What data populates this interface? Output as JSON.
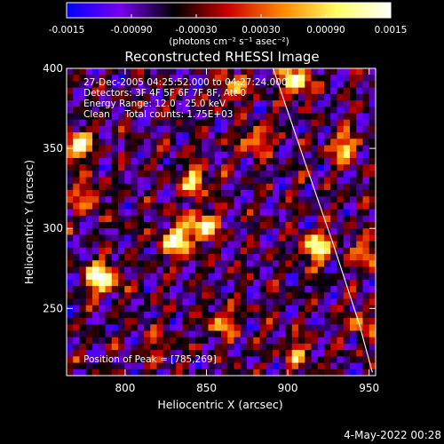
{
  "chart_data": {
    "type": "heatmap",
    "title": "Reconstructed RHESSI Image",
    "xlabel": "Heliocentric X (arcsec)",
    "ylabel": "Heliocentric Y (arcsec)",
    "xlim": [
      764,
      954
    ],
    "ylim": [
      208,
      400
    ],
    "xticks": [
      "800",
      "850",
      "900",
      "950"
    ],
    "yticks": [
      "250",
      "300",
      "350",
      "400"
    ],
    "colorbar": {
      "range": [
        -0.0015,
        0.0015
      ],
      "ticks": [
        "-0.0015",
        "-0.00090",
        "-0.00030",
        "0.00030",
        "0.00090",
        "0.0015"
      ],
      "label": "(photons cm⁻² s⁻¹ asec⁻²)",
      "colors": [
        "#0000ff",
        "#7700ee",
        "#000000",
        "#cc0000",
        "#ff8800",
        "#ffff66",
        "#ffffff"
      ]
    },
    "annotations": {
      "time_range": "27-Dec-2005 04:25:52.000 to 04:27:24.000",
      "detectors": "Detectors: 3F 4F 5F 6F 7F 8F, Att 0",
      "energy_range": "Energy Range: 12.0 - 25.0 keV",
      "clean_total": "Clean     Total counts: 1.75E+03",
      "peak": "Position of Peak = [785,269]"
    },
    "peak": [
      785,
      269
    ],
    "sources": [
      {
        "x": 785,
        "y": 269,
        "amp": 0.00145
      },
      {
        "x": 832,
        "y": 292,
        "amp": 0.00125
      },
      {
        "x": 848,
        "y": 302,
        "amp": 0.00105
      },
      {
        "x": 918,
        "y": 288,
        "amp": 0.0012
      },
      {
        "x": 770,
        "y": 352,
        "amp": 0.0011
      },
      {
        "x": 843,
        "y": 330,
        "amp": 0.0009
      },
      {
        "x": 880,
        "y": 355,
        "amp": 0.0008
      },
      {
        "x": 935,
        "y": 350,
        "amp": 0.0009
      },
      {
        "x": 905,
        "y": 392,
        "amp": 0.0011
      },
      {
        "x": 776,
        "y": 320,
        "amp": 0.0007
      },
      {
        "x": 860,
        "y": 240,
        "amp": 0.0007
      },
      {
        "x": 905,
        "y": 222,
        "amp": 0.00065
      },
      {
        "x": 950,
        "y": 285,
        "amp": 0.0008
      },
      {
        "x": 945,
        "y": 240,
        "amp": 0.0006
      },
      {
        "x": 820,
        "y": 228,
        "amp": 0.0004
      },
      {
        "x": 866,
        "y": 388,
        "amp": 0.0008
      }
    ],
    "limb_curve": [
      [
        891,
        400
      ],
      [
        911,
        340
      ],
      [
        928,
        290
      ],
      [
        944,
        240
      ],
      [
        952,
        210
      ]
    ]
  },
  "footer_date": "4-May-2022 00:28"
}
